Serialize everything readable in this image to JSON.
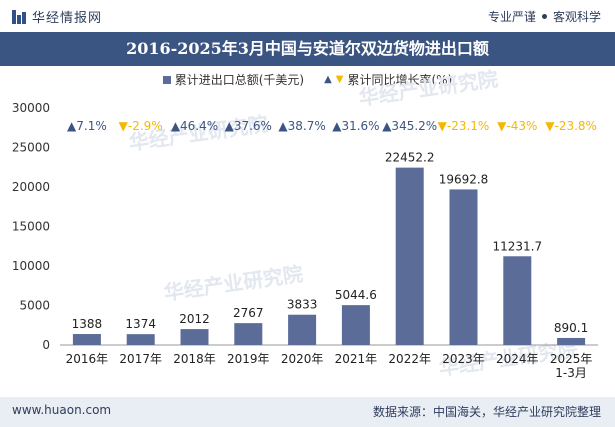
{
  "header": {
    "brand": "华经情报网",
    "slogan_left": "专业严谨",
    "slogan_right": "客观科学"
  },
  "footer": {
    "website": "www.huaon.com",
    "source": "数据来源：中国海关，华经产业研究院整理"
  },
  "watermark": "华经产业研究院",
  "colors": {
    "bar": "#5b6c98",
    "up": "#3b5583",
    "down": "#f5b800",
    "title_bg": "#3b5583"
  },
  "chart_data": {
    "type": "bar",
    "title": "2016-2025年3月中国与安道尔双边货物进出口额",
    "legend": [
      "累计进出口总额(千美元)",
      "累计同比增长率(%)"
    ],
    "legend_placement": "top-center",
    "categories": [
      "2016年",
      "2017年",
      "2018年",
      "2019年",
      "2020年",
      "2021年",
      "2022年",
      "2023年",
      "2024年",
      "2025年\n1-3月"
    ],
    "series": [
      {
        "name": "累计进出口总额(千美元)",
        "values": [
          1388,
          1374,
          2012,
          2767,
          3833,
          5044.6,
          22452.2,
          19692.8,
          11231.7,
          890.1
        ],
        "labels": [
          "1388",
          "1374",
          "2012",
          "2767",
          "3833",
          "5044.6",
          "22452.2",
          "19692.8",
          "11231.7",
          "890.1"
        ]
      },
      {
        "name": "累计同比增长率(%)",
        "values": [
          7.1,
          -2.9,
          46.4,
          37.6,
          38.7,
          31.6,
          345.2,
          -23.1,
          -43,
          -23.8
        ],
        "labels": [
          "7.1%",
          "-2.9%",
          "46.4%",
          "37.6%",
          "38.7%",
          "31.6%",
          "345.2%",
          "-23.1%",
          "-43%",
          "-23.8%"
        ]
      }
    ],
    "ylim": [
      0,
      30000
    ],
    "yticks": [
      "0",
      "5000",
      "10000",
      "15000",
      "20000",
      "25000",
      "30000"
    ],
    "grid": false
  }
}
